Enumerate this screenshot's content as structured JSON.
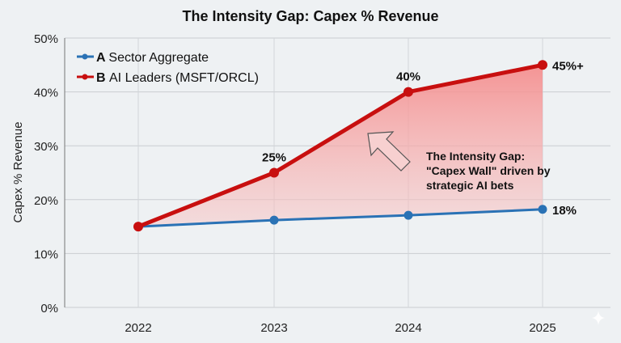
{
  "chart_data": {
    "type": "line",
    "title": "The Intensity Gap: Capex % Revenue",
    "xlabel": "",
    "ylabel": "Capex % Revenue",
    "categories": [
      "2022",
      "2023",
      "2024",
      "2025"
    ],
    "ylim": [
      0,
      50
    ],
    "yticks": [
      "0%",
      "10%",
      "20%",
      "30%",
      "40%",
      "50%"
    ],
    "grid": true,
    "legend": "top-left",
    "series": [
      {
        "name": "Sector Aggregate",
        "prefix": "A",
        "color": "#2a72b5",
        "values": [
          15,
          16.2,
          17.1,
          18.2
        ]
      },
      {
        "name": "AI Leaders (MSFT/ORCL)",
        "prefix": "B",
        "color": "#c80f0f",
        "values": [
          15,
          25,
          40,
          45
        ]
      }
    ],
    "data_labels": [
      {
        "series": 1,
        "index": 1,
        "text": "25%"
      },
      {
        "series": 1,
        "index": 2,
        "text": "40%"
      },
      {
        "series": 1,
        "index": 3,
        "text": "45%+"
      },
      {
        "series": 0,
        "index": 3,
        "text": "18%"
      }
    ],
    "annotation": {
      "lines": [
        "The Intensity Gap:",
        "\"Capex Wall\" driven by",
        "strategic AI bets"
      ]
    },
    "fill_between_color": "#f5a0a0"
  }
}
